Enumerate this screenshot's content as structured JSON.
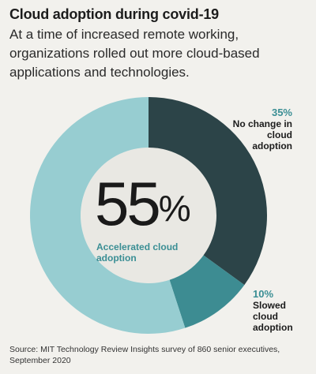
{
  "header": {
    "title": "Cloud adoption during covid-19",
    "subtitle": "At a time of increased remote working, organizations rolled out more cloud-based applications and technologies."
  },
  "center": {
    "value": "55",
    "unit": "%",
    "label": "Accelerated cloud adoption"
  },
  "callouts": [
    {
      "pct": "35%",
      "label": "No change in cloud adoption"
    },
    {
      "pct": "10%",
      "label": "Slowed cloud adoption"
    }
  ],
  "source": "Source: MIT Technology Review Insights survey of 860 senior executives, September 2020",
  "chart_data": {
    "type": "pie",
    "donut": true,
    "categories": [
      "No change in cloud adoption",
      "Slowed cloud adoption",
      "Accelerated cloud adoption"
    ],
    "values": [
      35,
      10,
      55
    ],
    "colors": [
      "#2c4448",
      "#3d8c92",
      "#97cdd1"
    ],
    "start_angle_deg": 0,
    "direction": "clockwise"
  }
}
